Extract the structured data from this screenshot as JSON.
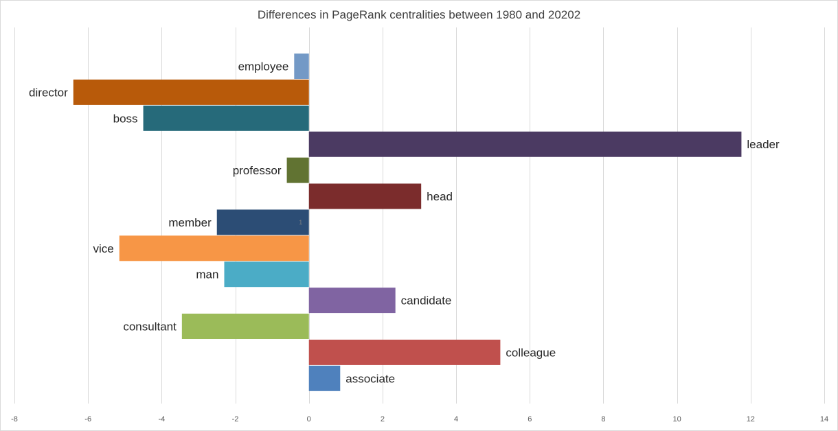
{
  "chart_data": {
    "type": "bar",
    "orientation": "horizontal",
    "title": "Differences in PageRank centralities between 1980 and 20202",
    "xlabel": "",
    "ylabel": "",
    "xlim": [
      -8,
      14
    ],
    "x_ticks": [
      -8,
      -6,
      -4,
      -2,
      0,
      2,
      4,
      6,
      8,
      10,
      12,
      14
    ],
    "gridlines": true,
    "legend": "none",
    "categories": [
      "employee",
      "director",
      "boss",
      "leader",
      "professor",
      "head",
      "member",
      "vice",
      "man",
      "candidate",
      "consultant",
      "colleague",
      "associate"
    ],
    "values": [
      -0.4,
      -6.4,
      -4.5,
      11.75,
      -0.6,
      3.05,
      -2.5,
      -5.15,
      -2.3,
      2.35,
      -3.45,
      5.2,
      0.85
    ],
    "colors": [
      "#7399c6",
      "#b85a0a",
      "#266a7a",
      "#4b3a62",
      "#617332",
      "#7b2c2c",
      "#2c4d75",
      "#f79646",
      "#4bacc6",
      "#8064a2",
      "#9bbb59",
      "#c0504d",
      "#4f81bd"
    ],
    "annotation": "1"
  }
}
